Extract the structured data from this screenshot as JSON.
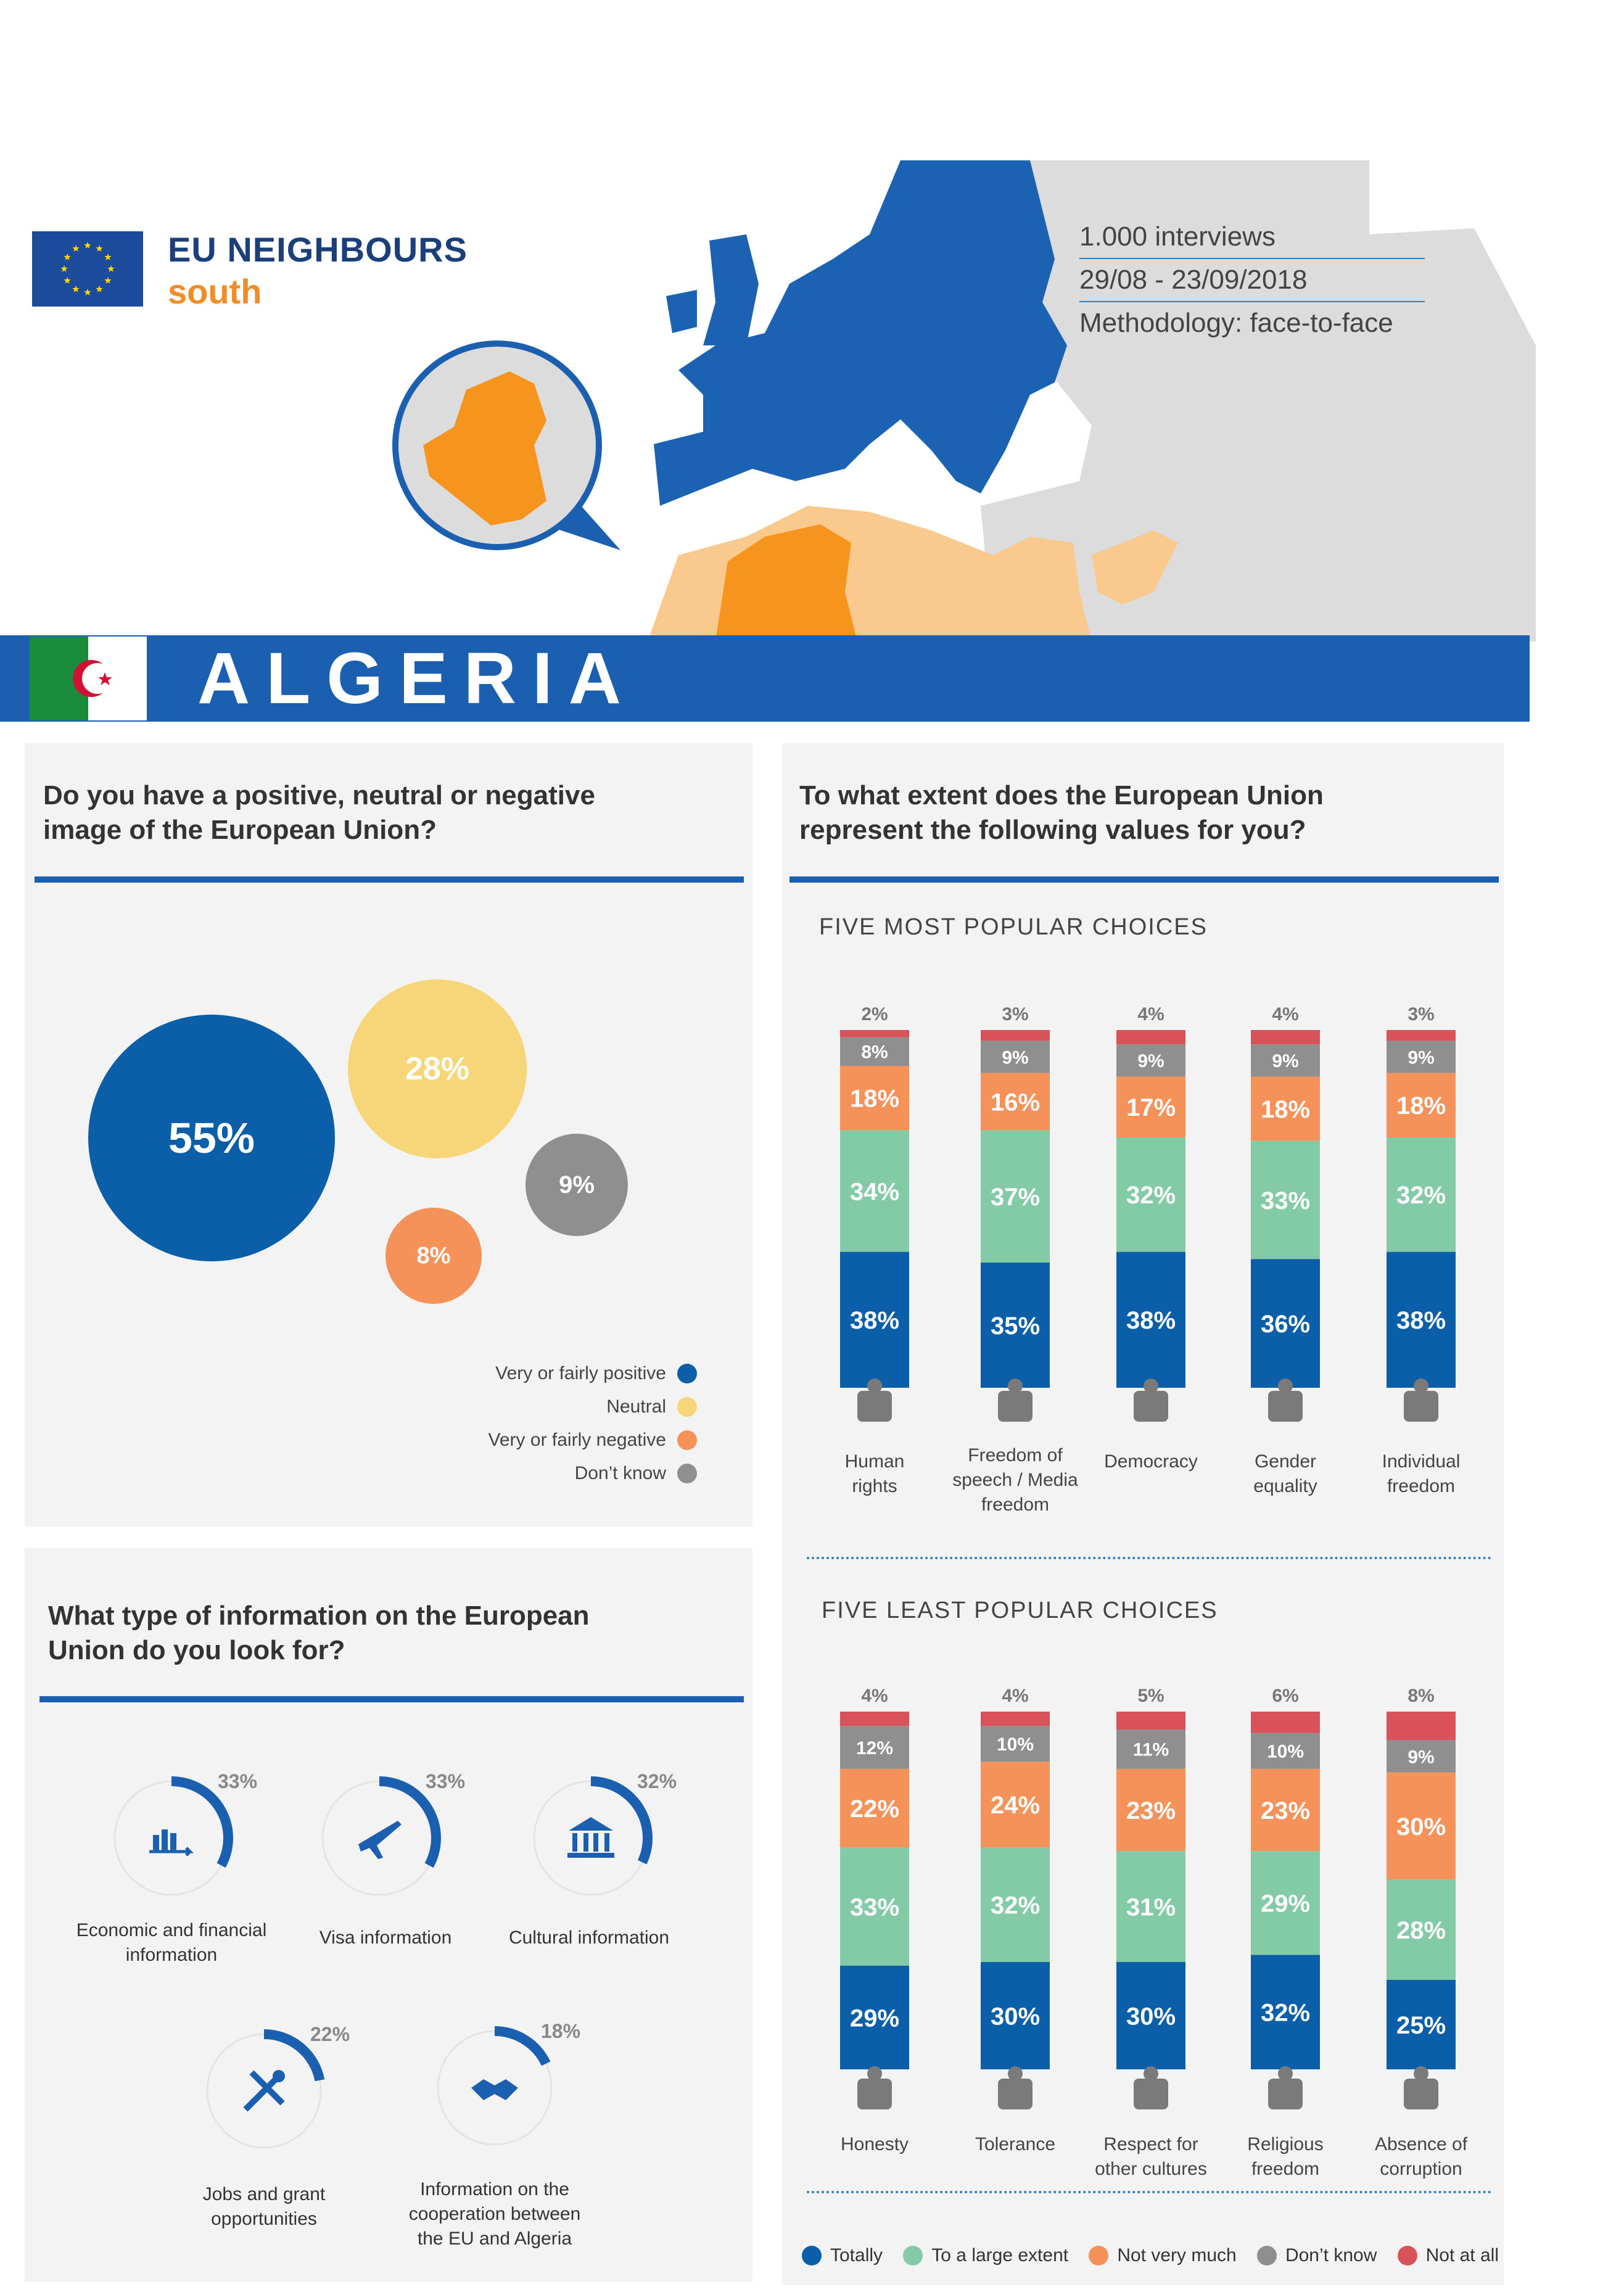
{
  "header": {
    "brand_title": "EU NEIGHBOURS",
    "brand_sub": "south",
    "meta": [
      "1.000 interviews",
      "29/08 - 23/09/2018",
      "Methodology: face-to-face"
    ],
    "country": "ALGERIA"
  },
  "colors": {
    "eu_blue": "#1a5fb0",
    "dark_blue": "#0b5ea8",
    "green": "#82cba6",
    "orange": "#f59259",
    "grey": "#8f8f8f",
    "red": "#d9525a",
    "yellow": "#f7d679",
    "map_orange": "#f7941d",
    "map_light_orange": "#fac98e",
    "map_grey": "#dcdcdc"
  },
  "image_question": {
    "title_line1": "Do you have a positive, neutral or negative",
    "title_line2": "image of the European Union?",
    "bubbles": [
      {
        "label": "Very or fairly positive",
        "value": "55%",
        "pct": 55,
        "color": "#0b5ea8"
      },
      {
        "label": "Neutral",
        "value": "28%",
        "pct": 28,
        "color": "#f7d679"
      },
      {
        "label": "Very or fairly negative",
        "value": "8%",
        "pct": 8,
        "color": "#f59259"
      },
      {
        "label": "Don’t know",
        "value": "9%",
        "pct": 9,
        "color": "#8f8f8f"
      }
    ]
  },
  "info_question": {
    "title_line1": "What type of information on the European",
    "title_line2": "Union do you look for?",
    "items": [
      {
        "label": [
          "Economic and financial",
          "information"
        ],
        "value": "33%",
        "pct": 33,
        "icon": "chart-icon"
      },
      {
        "label": [
          "Visa information"
        ],
        "value": "33%",
        "pct": 33,
        "icon": "plane-icon"
      },
      {
        "label": [
          "Cultural information"
        ],
        "value": "32%",
        "pct": 32,
        "icon": "museum-icon"
      },
      {
        "label": [
          "Jobs and grant",
          "opportunities"
        ],
        "value": "22%",
        "pct": 22,
        "icon": "tools-icon"
      },
      {
        "label": [
          "Information on the",
          "cooperation between",
          "the EU and Algeria"
        ],
        "value": "18%",
        "pct": 18,
        "icon": "handshake-icon"
      }
    ]
  },
  "values_question": {
    "title_line1": "To what extent does the European Union",
    "title_line2": "represent the following values for you?",
    "most_title": "FIVE MOST POPULAR CHOICES",
    "least_title": "FIVE LEAST POPULAR CHOICES"
  },
  "chart_data": [
    {
      "type": "bar",
      "stacked": true,
      "title": "FIVE MOST POPULAR CHOICES",
      "categories": [
        "Human rights",
        "Freedom of speech / Media freedom",
        "Democracy",
        "Gender equality",
        "Individual freedom"
      ],
      "category_lines": [
        [
          "Human",
          "rights"
        ],
        [
          "Freedom of",
          "speech / Media",
          "freedom"
        ],
        [
          "Democracy"
        ],
        [
          "Gender",
          "equality"
        ],
        [
          "Individual",
          "freedom"
        ]
      ],
      "series": [
        {
          "name": "Totally",
          "values": [
            38,
            35,
            38,
            36,
            38
          ],
          "color": "#0b5ea8"
        },
        {
          "name": "To a large extent",
          "values": [
            34,
            37,
            32,
            33,
            32
          ],
          "color": "#82cba6"
        },
        {
          "name": "Not very much",
          "values": [
            18,
            16,
            17,
            18,
            18
          ],
          "color": "#f59259"
        },
        {
          "name": "Don’t know",
          "values": [
            8,
            9,
            9,
            9,
            9
          ],
          "color": "#8f8f8f"
        },
        {
          "name": "Not at all",
          "values": [
            2,
            3,
            4,
            4,
            3
          ],
          "color": "#d9525a"
        }
      ]
    },
    {
      "type": "bar",
      "stacked": true,
      "title": "FIVE LEAST POPULAR CHOICES",
      "categories": [
        "Honesty",
        "Tolerance",
        "Respect for other cultures",
        "Religious freedom",
        "Absence of corruption"
      ],
      "category_lines": [
        [
          "Honesty"
        ],
        [
          "Tolerance"
        ],
        [
          "Respect for",
          "other cultures"
        ],
        [
          "Religious",
          "freedom"
        ],
        [
          "Absence of",
          "corruption"
        ]
      ],
      "series": [
        {
          "name": "Totally",
          "values": [
            29,
            30,
            30,
            32,
            25
          ],
          "color": "#0b5ea8"
        },
        {
          "name": "To a large extent",
          "values": [
            33,
            32,
            31,
            29,
            28
          ],
          "color": "#82cba6"
        },
        {
          "name": "Not very much",
          "values": [
            22,
            24,
            23,
            23,
            30
          ],
          "color": "#f59259"
        },
        {
          "name": "Don’t know",
          "values": [
            12,
            10,
            11,
            10,
            9
          ],
          "color": "#8f8f8f"
        },
        {
          "name": "Not at all",
          "values": [
            4,
            4,
            5,
            6,
            8
          ],
          "color": "#d9525a"
        }
      ]
    }
  ],
  "legend": [
    "Totally",
    "To a large extent",
    "Not very much",
    "Don’t know",
    "Not at all"
  ]
}
